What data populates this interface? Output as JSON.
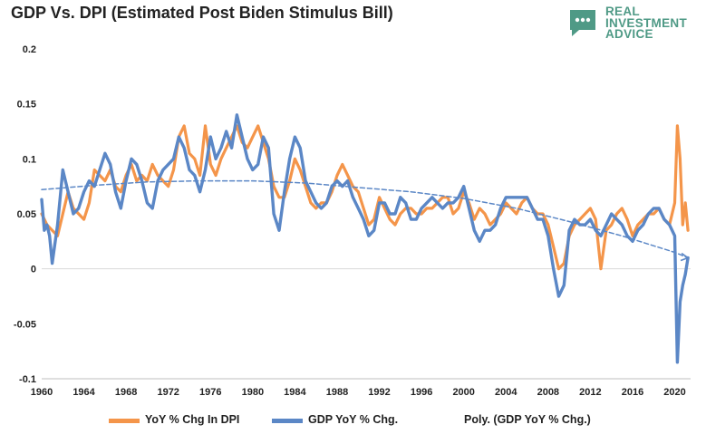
{
  "title": "GDP Vs. DPI (Estimated Post Biden Stimulus Bill)",
  "logo": {
    "lines": [
      "REAL",
      "INVESTMENT",
      "ADVICE"
    ],
    "icon": "chat-bubble-icon",
    "color": "#4f9a86"
  },
  "chart_data": {
    "type": "line",
    "title": "GDP Vs. DPI (Estimated Post Biden Stimulus Bill)",
    "xlabel": "",
    "ylabel": "",
    "xlim": [
      1960,
      2021.5
    ],
    "ylim": [
      -0.1,
      0.2
    ],
    "y_ticks": [
      -0.1,
      -0.05,
      0,
      0.05,
      0.1,
      0.15,
      0.2
    ],
    "y_tick_labels": [
      "-0.1",
      "-0.05",
      "0",
      "0.05",
      "0.1",
      "0.15",
      "0.2"
    ],
    "x_ticks": [
      1960,
      1964,
      1968,
      1972,
      1976,
      1980,
      1984,
      1988,
      1992,
      1996,
      2000,
      2004,
      2008,
      2012,
      2016,
      2020
    ],
    "x_tick_labels": [
      "1960",
      "1964",
      "1968",
      "1972",
      "1976",
      "1980",
      "1984",
      "1988",
      "1992",
      "1996",
      "2000",
      "2004",
      "2008",
      "2012",
      "2016",
      "2020"
    ],
    "grid": false,
    "legend": "bottom",
    "series": [
      {
        "name": "YoY % Chg In DPI",
        "color": "#f4954a",
        "style": "solid",
        "points": [
          [
            1960.0,
            0.05
          ],
          [
            1960.5,
            0.04
          ],
          [
            1961.0,
            0.035
          ],
          [
            1961.5,
            0.03
          ],
          [
            1962.0,
            0.05
          ],
          [
            1962.5,
            0.07
          ],
          [
            1963.0,
            0.055
          ],
          [
            1963.5,
            0.05
          ],
          [
            1964.0,
            0.045
          ],
          [
            1964.5,
            0.06
          ],
          [
            1965.0,
            0.09
          ],
          [
            1965.5,
            0.085
          ],
          [
            1966.0,
            0.08
          ],
          [
            1966.5,
            0.09
          ],
          [
            1967.0,
            0.075
          ],
          [
            1967.5,
            0.07
          ],
          [
            1968.0,
            0.085
          ],
          [
            1968.5,
            0.095
          ],
          [
            1969.0,
            0.08
          ],
          [
            1969.5,
            0.085
          ],
          [
            1970.0,
            0.08
          ],
          [
            1970.5,
            0.095
          ],
          [
            1971.0,
            0.085
          ],
          [
            1971.5,
            0.08
          ],
          [
            1972.0,
            0.075
          ],
          [
            1972.5,
            0.09
          ],
          [
            1973.0,
            0.12
          ],
          [
            1973.5,
            0.13
          ],
          [
            1974.0,
            0.105
          ],
          [
            1974.5,
            0.1
          ],
          [
            1975.0,
            0.085
          ],
          [
            1975.5,
            0.13
          ],
          [
            1976.0,
            0.095
          ],
          [
            1976.5,
            0.085
          ],
          [
            1977.0,
            0.1
          ],
          [
            1977.5,
            0.11
          ],
          [
            1978.0,
            0.12
          ],
          [
            1978.5,
            0.13
          ],
          [
            1979.0,
            0.115
          ],
          [
            1979.5,
            0.11
          ],
          [
            1980.0,
            0.12
          ],
          [
            1980.5,
            0.13
          ],
          [
            1981.0,
            0.115
          ],
          [
            1981.5,
            0.1
          ],
          [
            1982.0,
            0.075
          ],
          [
            1982.5,
            0.065
          ],
          [
            1983.0,
            0.065
          ],
          [
            1983.5,
            0.08
          ],
          [
            1984.0,
            0.1
          ],
          [
            1984.5,
            0.09
          ],
          [
            1985.0,
            0.075
          ],
          [
            1985.5,
            0.06
          ],
          [
            1986.0,
            0.055
          ],
          [
            1986.5,
            0.06
          ],
          [
            1987.0,
            0.06
          ],
          [
            1987.5,
            0.07
          ],
          [
            1988.0,
            0.085
          ],
          [
            1988.5,
            0.095
          ],
          [
            1989.0,
            0.085
          ],
          [
            1989.5,
            0.075
          ],
          [
            1990.0,
            0.07
          ],
          [
            1990.5,
            0.055
          ],
          [
            1991.0,
            0.04
          ],
          [
            1991.5,
            0.045
          ],
          [
            1992.0,
            0.065
          ],
          [
            1992.5,
            0.055
          ],
          [
            1993.0,
            0.045
          ],
          [
            1993.5,
            0.04
          ],
          [
            1994.0,
            0.05
          ],
          [
            1994.5,
            0.055
          ],
          [
            1995.0,
            0.055
          ],
          [
            1995.5,
            0.05
          ],
          [
            1996.0,
            0.05
          ],
          [
            1996.5,
            0.055
          ],
          [
            1997.0,
            0.055
          ],
          [
            1997.5,
            0.06
          ],
          [
            1998.0,
            0.065
          ],
          [
            1998.5,
            0.065
          ],
          [
            1999.0,
            0.05
          ],
          [
            1999.5,
            0.055
          ],
          [
            2000.0,
            0.07
          ],
          [
            2000.5,
            0.06
          ],
          [
            2001.0,
            0.045
          ],
          [
            2001.5,
            0.055
          ],
          [
            2002.0,
            0.05
          ],
          [
            2002.5,
            0.04
          ],
          [
            2003.0,
            0.045
          ],
          [
            2003.5,
            0.05
          ],
          [
            2004.0,
            0.06
          ],
          [
            2004.5,
            0.055
          ],
          [
            2005.0,
            0.05
          ],
          [
            2005.5,
            0.06
          ],
          [
            2006.0,
            0.065
          ],
          [
            2006.5,
            0.055
          ],
          [
            2007.0,
            0.05
          ],
          [
            2007.5,
            0.05
          ],
          [
            2008.0,
            0.04
          ],
          [
            2008.5,
            0.02
          ],
          [
            2009.0,
            0.0
          ],
          [
            2009.5,
            0.005
          ],
          [
            2010.0,
            0.03
          ],
          [
            2010.5,
            0.04
          ],
          [
            2011.0,
            0.045
          ],
          [
            2011.5,
            0.05
          ],
          [
            2012.0,
            0.055
          ],
          [
            2012.5,
            0.045
          ],
          [
            2013.0,
            0.0
          ],
          [
            2013.5,
            0.035
          ],
          [
            2014.0,
            0.04
          ],
          [
            2014.5,
            0.05
          ],
          [
            2015.0,
            0.055
          ],
          [
            2015.5,
            0.045
          ],
          [
            2016.0,
            0.03
          ],
          [
            2016.5,
            0.04
          ],
          [
            2017.0,
            0.045
          ],
          [
            2017.5,
            0.05
          ],
          [
            2018.0,
            0.05
          ],
          [
            2018.5,
            0.055
          ],
          [
            2019.0,
            0.045
          ],
          [
            2019.5,
            0.04
          ],
          [
            2020.0,
            0.06
          ],
          [
            2020.25,
            0.13
          ],
          [
            2020.5,
            0.1
          ],
          [
            2020.75,
            0.04
          ],
          [
            2021.0,
            0.06
          ],
          [
            2021.25,
            0.035
          ]
        ]
      },
      {
        "name": "GDP YoY % Chg.",
        "color": "#5b87c6",
        "style": "solid",
        "points": [
          [
            1960.0,
            0.063
          ],
          [
            1960.25,
            0.035
          ],
          [
            1960.5,
            0.04
          ],
          [
            1960.75,
            0.03
          ],
          [
            1961.0,
            0.005
          ],
          [
            1961.5,
            0.04
          ],
          [
            1962.0,
            0.09
          ],
          [
            1962.5,
            0.07
          ],
          [
            1963.0,
            0.05
          ],
          [
            1963.5,
            0.055
          ],
          [
            1964.0,
            0.07
          ],
          [
            1964.5,
            0.08
          ],
          [
            1965.0,
            0.075
          ],
          [
            1965.5,
            0.09
          ],
          [
            1966.0,
            0.105
          ],
          [
            1966.5,
            0.095
          ],
          [
            1967.0,
            0.07
          ],
          [
            1967.5,
            0.055
          ],
          [
            1968.0,
            0.08
          ],
          [
            1968.5,
            0.1
          ],
          [
            1969.0,
            0.095
          ],
          [
            1969.5,
            0.08
          ],
          [
            1970.0,
            0.06
          ],
          [
            1970.5,
            0.055
          ],
          [
            1971.0,
            0.08
          ],
          [
            1971.5,
            0.09
          ],
          [
            1972.0,
            0.095
          ],
          [
            1972.5,
            0.1
          ],
          [
            1973.0,
            0.12
          ],
          [
            1973.5,
            0.11
          ],
          [
            1974.0,
            0.09
          ],
          [
            1974.5,
            0.085
          ],
          [
            1975.0,
            0.07
          ],
          [
            1975.5,
            0.09
          ],
          [
            1976.0,
            0.12
          ],
          [
            1976.5,
            0.1
          ],
          [
            1977.0,
            0.11
          ],
          [
            1977.5,
            0.125
          ],
          [
            1978.0,
            0.11
          ],
          [
            1978.5,
            0.14
          ],
          [
            1979.0,
            0.12
          ],
          [
            1979.5,
            0.1
          ],
          [
            1980.0,
            0.09
          ],
          [
            1980.5,
            0.095
          ],
          [
            1981.0,
            0.12
          ],
          [
            1981.5,
            0.11
          ],
          [
            1982.0,
            0.05
          ],
          [
            1982.5,
            0.035
          ],
          [
            1983.0,
            0.07
          ],
          [
            1983.5,
            0.1
          ],
          [
            1984.0,
            0.12
          ],
          [
            1984.5,
            0.11
          ],
          [
            1985.0,
            0.08
          ],
          [
            1985.5,
            0.07
          ],
          [
            1986.0,
            0.06
          ],
          [
            1986.5,
            0.055
          ],
          [
            1987.0,
            0.06
          ],
          [
            1987.5,
            0.075
          ],
          [
            1988.0,
            0.08
          ],
          [
            1988.5,
            0.075
          ],
          [
            1989.0,
            0.08
          ],
          [
            1989.5,
            0.065
          ],
          [
            1990.0,
            0.055
          ],
          [
            1990.5,
            0.045
          ],
          [
            1991.0,
            0.03
          ],
          [
            1991.5,
            0.035
          ],
          [
            1992.0,
            0.06
          ],
          [
            1992.5,
            0.06
          ],
          [
            1993.0,
            0.05
          ],
          [
            1993.5,
            0.05
          ],
          [
            1994.0,
            0.065
          ],
          [
            1994.5,
            0.06
          ],
          [
            1995.0,
            0.045
          ],
          [
            1995.5,
            0.045
          ],
          [
            1996.0,
            0.055
          ],
          [
            1996.5,
            0.06
          ],
          [
            1997.0,
            0.065
          ],
          [
            1997.5,
            0.06
          ],
          [
            1998.0,
            0.055
          ],
          [
            1998.5,
            0.06
          ],
          [
            1999.0,
            0.06
          ],
          [
            1999.5,
            0.065
          ],
          [
            2000.0,
            0.075
          ],
          [
            2000.5,
            0.055
          ],
          [
            2001.0,
            0.035
          ],
          [
            2001.5,
            0.025
          ],
          [
            2002.0,
            0.035
          ],
          [
            2002.5,
            0.035
          ],
          [
            2003.0,
            0.04
          ],
          [
            2003.5,
            0.055
          ],
          [
            2004.0,
            0.065
          ],
          [
            2004.5,
            0.065
          ],
          [
            2005.0,
            0.065
          ],
          [
            2005.5,
            0.065
          ],
          [
            2006.0,
            0.065
          ],
          [
            2006.5,
            0.055
          ],
          [
            2007.0,
            0.045
          ],
          [
            2007.5,
            0.045
          ],
          [
            2008.0,
            0.03
          ],
          [
            2008.5,
            0.0
          ],
          [
            2009.0,
            -0.025
          ],
          [
            2009.5,
            -0.015
          ],
          [
            2010.0,
            0.035
          ],
          [
            2010.5,
            0.045
          ],
          [
            2011.0,
            0.04
          ],
          [
            2011.5,
            0.04
          ],
          [
            2012.0,
            0.045
          ],
          [
            2012.5,
            0.035
          ],
          [
            2013.0,
            0.03
          ],
          [
            2013.5,
            0.04
          ],
          [
            2014.0,
            0.05
          ],
          [
            2014.5,
            0.045
          ],
          [
            2015.0,
            0.04
          ],
          [
            2015.5,
            0.03
          ],
          [
            2016.0,
            0.025
          ],
          [
            2016.5,
            0.035
          ],
          [
            2017.0,
            0.04
          ],
          [
            2017.5,
            0.05
          ],
          [
            2018.0,
            0.055
          ],
          [
            2018.5,
            0.055
          ],
          [
            2019.0,
            0.045
          ],
          [
            2019.5,
            0.04
          ],
          [
            2020.0,
            0.03
          ],
          [
            2020.25,
            -0.085
          ],
          [
            2020.5,
            -0.03
          ],
          [
            2020.75,
            -0.015
          ],
          [
            2021.0,
            -0.005
          ],
          [
            2021.25,
            0.01
          ]
        ]
      },
      {
        "name": "Poly. (GDP YoY % Chg.)",
        "color": "#5b87c6",
        "style": "dashed",
        "points": [
          [
            1960.0,
            0.072
          ],
          [
            1965.0,
            0.076
          ],
          [
            1970.0,
            0.079
          ],
          [
            1975.0,
            0.08
          ],
          [
            1980.0,
            0.08
          ],
          [
            1985.0,
            0.078
          ],
          [
            1990.0,
            0.074
          ],
          [
            1995.0,
            0.07
          ],
          [
            2000.0,
            0.064
          ],
          [
            2005.0,
            0.055
          ],
          [
            2010.0,
            0.043
          ],
          [
            2015.0,
            0.03
          ],
          [
            2020.0,
            0.015
          ],
          [
            2021.25,
            0.01
          ]
        ]
      }
    ]
  }
}
